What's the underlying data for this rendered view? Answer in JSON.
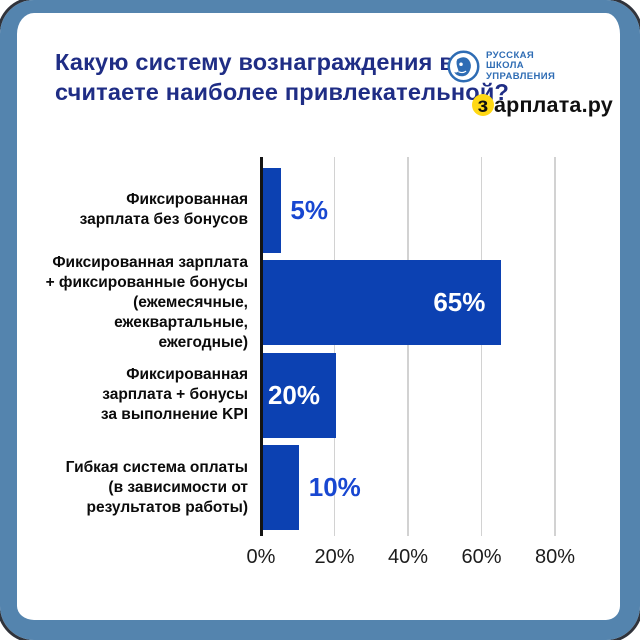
{
  "frame": {
    "border_color": "#5484ae"
  },
  "header": {
    "title_lines": [
      "Какую систему вознаграждения вы",
      "считаете наиболее привлекательной?"
    ],
    "title_color": "#1f2d85",
    "logos": {
      "rsu": {
        "alt": "Русская школа управления",
        "text_lines": [
          "РУССКАЯ",
          "ШКОЛА",
          "УПРАВЛЕНИЯ"
        ],
        "color": "#2e6cb4"
      },
      "zarplata": {
        "full_text": "зарплата.ру",
        "highlight_letter": "з",
        "rest_text": "арплата.ру",
        "highlight_color": "#ffd814"
      }
    }
  },
  "chart_data": {
    "type": "bar",
    "orientation": "horizontal",
    "title": "Какую систему вознаграждения вы считаете наиболее привлекательной?",
    "categories": [
      "Фиксированная зарплата без бонусов",
      "Фиксированная зарплата + фиксированные бонусы (ежемесячные, ежеквартальные, ежегодные)",
      "Фиксированная зарплата + бонусы за выполнение KPI",
      "Гибкая система оплаты (в зависимости от результатов работы)"
    ],
    "category_lines": [
      [
        "Фиксированная",
        "зарплата без бонусов"
      ],
      [
        "Фиксированная зарплата",
        "+ фиксированные бонусы",
        "(ежемесячные,",
        "ежеквартальные,",
        "ежегодные)"
      ],
      [
        "Фиксированная",
        "зарплата + бонусы",
        "за выполнение KPI"
      ],
      [
        "Гибкая система оплаты",
        "(в зависимости от",
        "результатов работы)"
      ]
    ],
    "values": [
      5,
      65,
      20,
      10
    ],
    "value_labels": [
      "5%",
      "65%",
      "20%",
      "10%"
    ],
    "x_ticks": [
      "0%",
      "20%",
      "40%",
      "60%",
      "80%"
    ],
    "xlim": [
      0,
      80
    ],
    "grid": true,
    "legend": false,
    "bar_color": "#0c41b2",
    "value_label_color_inside": "#ffffff",
    "value_label_color_outside": "#1847d1",
    "axis_color": "#141414",
    "grid_color": "#d2d2d2",
    "tick_label_color": "#1c1c1c"
  }
}
